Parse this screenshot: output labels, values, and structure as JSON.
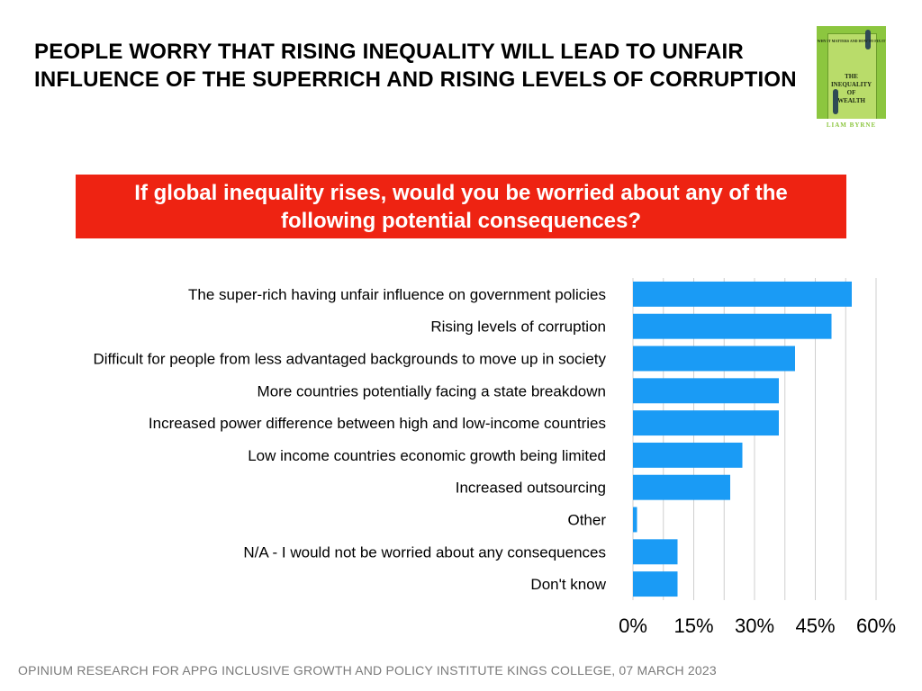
{
  "header": {
    "title": "PEOPLE WORRY THAT RISING INEQUALITY WILL LEAD TO UNFAIR INFLUENCE OF THE SUPERRICH AND RISING LEVELS OF CORRUPTION"
  },
  "book_cover": {
    "small_text_top": "WHY IT MATTERS AND HOW TO FIX IT",
    "title_line1": "THE",
    "title_line2": "INEQUALITY",
    "title_line3": "OF",
    "title_line4": "WEALTH",
    "author": "LIAM BYRNE",
    "background_color": "#8cc63f"
  },
  "question": {
    "text": "If global inequality rises, would you be worried about any of the following potential consequences?",
    "background_color": "#ee2312"
  },
  "chart_data": {
    "type": "bar",
    "orientation": "horizontal",
    "categories": [
      "The super-rich having unfair influence on government policies",
      "Rising levels of corruption",
      "Difficult for people from less advantaged backgrounds to move up in society",
      "More countries potentially facing a state breakdown",
      "Increased power difference between high and low-income countries",
      "Low income countries economic growth being limited",
      "Increased outsourcing",
      "Other",
      "N/A - I would not be worried about any consequences",
      "Don't know"
    ],
    "values": [
      54,
      49,
      40,
      36,
      36,
      27,
      24,
      1,
      11,
      11
    ],
    "xlim": [
      0,
      60
    ],
    "xticks": [
      0,
      15,
      30,
      45,
      60
    ],
    "tick_labels": [
      "0%",
      "15%",
      "30%",
      "45%",
      "60%"
    ],
    "bar_color": "#1a9bf5",
    "gridlines": "vertical",
    "grid_color": "#cfcfcf"
  },
  "footer": {
    "source": "OPINIUM RESEARCH FOR APPG INCLUSIVE GROWTH AND POLICY INSTITUTE KINGS COLLEGE, 07 MARCH 2023"
  }
}
